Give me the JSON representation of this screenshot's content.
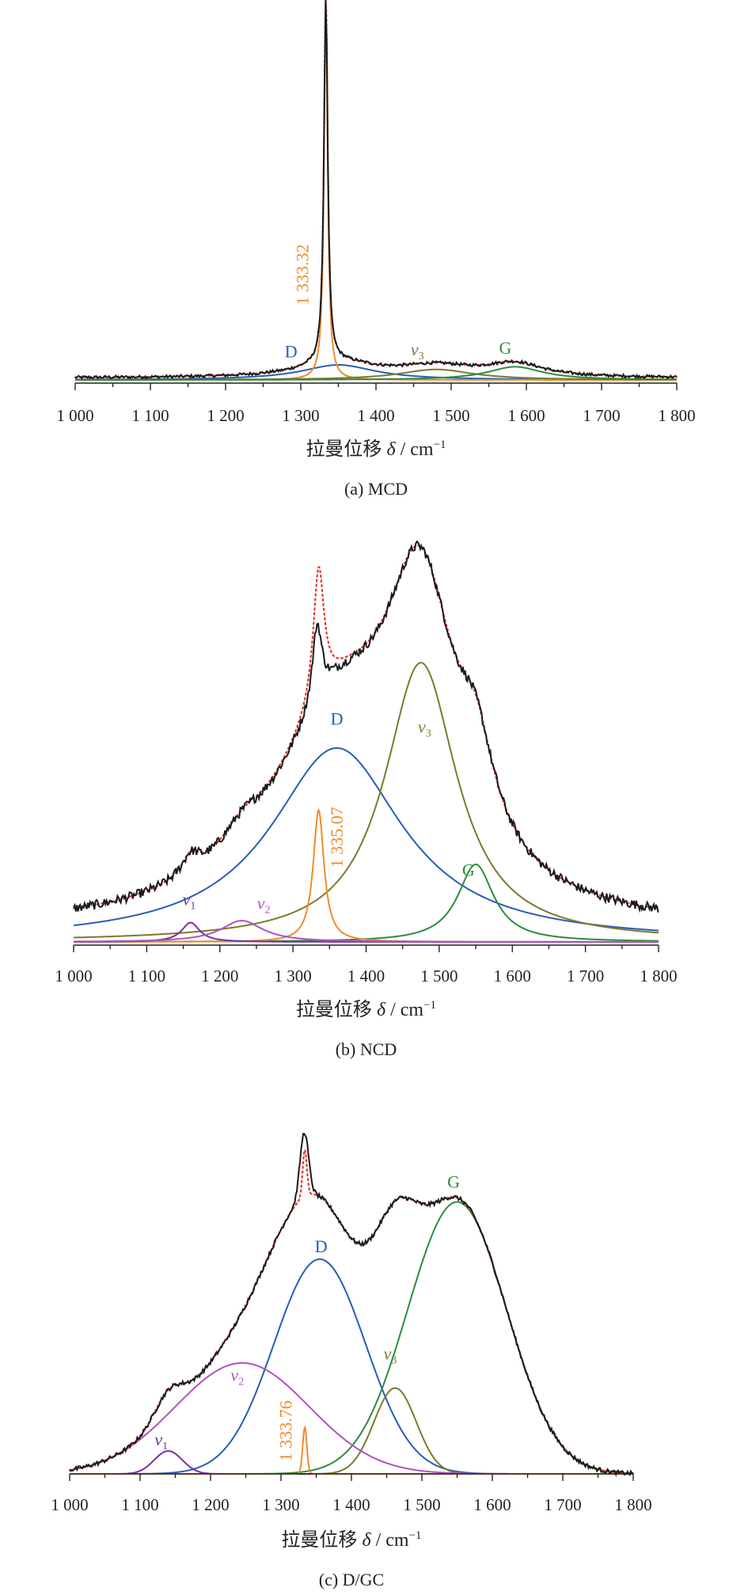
{
  "figure": {
    "panels": [
      "(a) MCD",
      "(b) NCD",
      "(c) D/GC"
    ]
  },
  "colors": {
    "experimental": "#1a1a1a",
    "fit": "#e03a2f",
    "D": "#2a5cb8",
    "G": "#2e8b3c",
    "v1": "#7b2f9e",
    "v2": "#b052c0",
    "v3": "#7a7a2e",
    "diamond": "#f08a2a"
  },
  "chart_data": [
    {
      "type": "line",
      "caption": "(a) MCD",
      "xlabel_text": "拉曼位移 ",
      "xlabel_var": "δ",
      "xlabel_unit": " / cm",
      "xlabel_exp": "−1",
      "xlim": [
        1000,
        1800
      ],
      "ylim": [
        0,
        1
      ],
      "xticks": [
        1000,
        1100,
        1200,
        1300,
        1400,
        1500,
        1600,
        1700,
        1800
      ],
      "xtick_labels": [
        "1 000",
        "1 100",
        "1 200",
        "1 300",
        "1 400",
        "1 500",
        "1 600",
        "1 700",
        "1 800"
      ],
      "experimental_peaks": [
        {
          "center": 1333.32,
          "height": 0.98,
          "width": 3
        },
        {
          "center": 1350,
          "height": 0.04,
          "width": 60
        },
        {
          "center": 1480,
          "height": 0.028,
          "width": 60
        },
        {
          "center": 1585,
          "height": 0.035,
          "width": 45
        }
      ],
      "baseline": 0.005,
      "components": [
        {
          "name": "D",
          "color_key": "D",
          "center": 1350,
          "height": 0.04,
          "width": 60
        },
        {
          "name": "1 333.32",
          "color_key": "diamond",
          "center": 1333.32,
          "height": 0.98,
          "width": 3
        },
        {
          "name": "ν3",
          "color_key": "v3",
          "center": 1480,
          "height": 0.028,
          "width": 60
        },
        {
          "name": "G",
          "color_key": "G",
          "center": 1585,
          "height": 0.035,
          "width": 45
        }
      ],
      "labels": [
        {
          "text": "D",
          "sub": "",
          "color_key": "D",
          "x": 1287,
          "y": 0.06
        },
        {
          "text": "v",
          "sub": "3",
          "color_key": "v3",
          "x": 1455,
          "y": 0.065
        },
        {
          "text": "G",
          "sub": "",
          "color_key": "G",
          "x": 1572,
          "y": 0.07
        },
        {
          "text": "1 333.32",
          "sub": "",
          "color_key": "diamond",
          "x": 1310,
          "y": 0.28,
          "rotate": true
        }
      ]
    },
    {
      "type": "line",
      "caption": "(b) NCD",
      "xlabel_text": "拉曼位移 ",
      "xlabel_var": "δ",
      "xlabel_unit": " / cm",
      "xlabel_exp": "−1",
      "xlim": [
        1000,
        1800
      ],
      "ylim": [
        0,
        1
      ],
      "xticks": [
        1000,
        1100,
        1200,
        1300,
        1400,
        1500,
        1600,
        1700,
        1800
      ],
      "xtick_labels": [
        "1 000",
        "1 100",
        "1 200",
        "1 300",
        "1 400",
        "1 500",
        "1 600",
        "1 700",
        "1 800"
      ],
      "experimental_peaks": [
        {
          "center": 1360,
          "height": 0.5,
          "width": 110
        },
        {
          "center": 1475,
          "height": 0.72,
          "width": 60
        },
        {
          "center": 1550,
          "height": 0.2,
          "width": 30
        },
        {
          "center": 1333,
          "height": 0.2,
          "width": 8
        },
        {
          "center": 1160,
          "height": 0.05,
          "width": 15
        },
        {
          "center": 1230,
          "height": 0.055,
          "width": 35
        }
      ],
      "baseline": 0.03,
      "components": [
        {
          "name": "D",
          "color_key": "D",
          "center": 1360,
          "height": 0.5,
          "width": 110
        },
        {
          "name": "ν3",
          "color_key": "v3",
          "center": 1475,
          "height": 0.72,
          "width": 60
        },
        {
          "name": "G",
          "color_key": "G",
          "center": 1550,
          "height": 0.2,
          "width": 30
        },
        {
          "name": "1 335.07",
          "color_key": "diamond",
          "center": 1335.07,
          "height": 0.34,
          "width": 9
        },
        {
          "name": "ν1",
          "color_key": "v1",
          "center": 1160,
          "height": 0.05,
          "width": 15
        },
        {
          "name": "ν2",
          "color_key": "v2",
          "center": 1230,
          "height": 0.055,
          "width": 35
        }
      ],
      "labels": [
        {
          "text": "D",
          "sub": "",
          "color_key": "D",
          "x": 1360,
          "y": 0.56
        },
        {
          "text": "v",
          "sub": "3",
          "color_key": "v3",
          "x": 1480,
          "y": 0.54
        },
        {
          "text": "G",
          "sub": "",
          "color_key": "G",
          "x": 1540,
          "y": 0.17
        },
        {
          "text": "v",
          "sub": "1",
          "color_key": "v1",
          "x": 1158,
          "y": 0.095
        },
        {
          "text": "v",
          "sub": "2",
          "color_key": "v2",
          "x": 1260,
          "y": 0.085
        },
        {
          "text": "1 335.07",
          "sub": "",
          "color_key": "diamond",
          "x": 1368,
          "y": 0.27,
          "rotate": true
        }
      ]
    },
    {
      "type": "line",
      "caption": "(c) D/GC",
      "xlabel_text": "拉曼位移 ",
      "xlabel_var": "δ",
      "xlabel_unit": " / cm",
      "xlabel_exp": "−1",
      "xlim": [
        1000,
        1800
      ],
      "ylim": [
        0,
        1
      ],
      "xticks": [
        1000,
        1100,
        1200,
        1300,
        1400,
        1500,
        1600,
        1700,
        1800
      ],
      "xtick_labels": [
        "1 000",
        "1 100",
        "1 200",
        "1 300",
        "1 400",
        "1 500",
        "1 600",
        "1 700",
        "1 800"
      ],
      "experimental_peaks": [
        {
          "center": 1355,
          "height": 0.6,
          "width": 65
        },
        {
          "center": 1550,
          "height": 0.76,
          "width": 70
        },
        {
          "center": 1462,
          "height": 0.24,
          "width": 30
        },
        {
          "center": 1245,
          "height": 0.31,
          "width": 95
        },
        {
          "center": 1140,
          "height": 0.064,
          "width": 20
        },
        {
          "center": 1333,
          "height": 0.18,
          "width": 6
        }
      ],
      "baseline": 0.0,
      "components": [
        {
          "name": "D",
          "color_key": "D",
          "center": 1355,
          "height": 0.6,
          "width": 65
        },
        {
          "name": "G",
          "color_key": "G",
          "center": 1550,
          "height": 0.76,
          "width": 70
        },
        {
          "name": "ν3",
          "color_key": "v3",
          "center": 1462,
          "height": 0.24,
          "width": 30
        },
        {
          "name": "ν2",
          "color_key": "v2",
          "center": 1245,
          "height": 0.31,
          "width": 95
        },
        {
          "name": "ν1",
          "color_key": "v1",
          "center": 1140,
          "height": 0.064,
          "width": 20
        },
        {
          "name": "1 333.76",
          "color_key": "diamond",
          "center": 1333.76,
          "height": 0.13,
          "width": 3
        }
      ],
      "labels": [
        {
          "text": "D",
          "sub": "",
          "color_key": "D",
          "x": 1357,
          "y": 0.62
        },
        {
          "text": "G",
          "sub": "",
          "color_key": "G",
          "x": 1545,
          "y": 0.8
        },
        {
          "text": "v",
          "sub": "3",
          "color_key": "v3",
          "x": 1455,
          "y": 0.32
        },
        {
          "text": "v",
          "sub": "2",
          "color_key": "v2",
          "x": 1238,
          "y": 0.26
        },
        {
          "text": "v",
          "sub": "1",
          "color_key": "v1",
          "x": 1130,
          "y": 0.08
        },
        {
          "text": "1 333.76",
          "sub": "",
          "color_key": "diamond",
          "x": 1315,
          "y": 0.12,
          "rotate": true
        }
      ]
    }
  ]
}
